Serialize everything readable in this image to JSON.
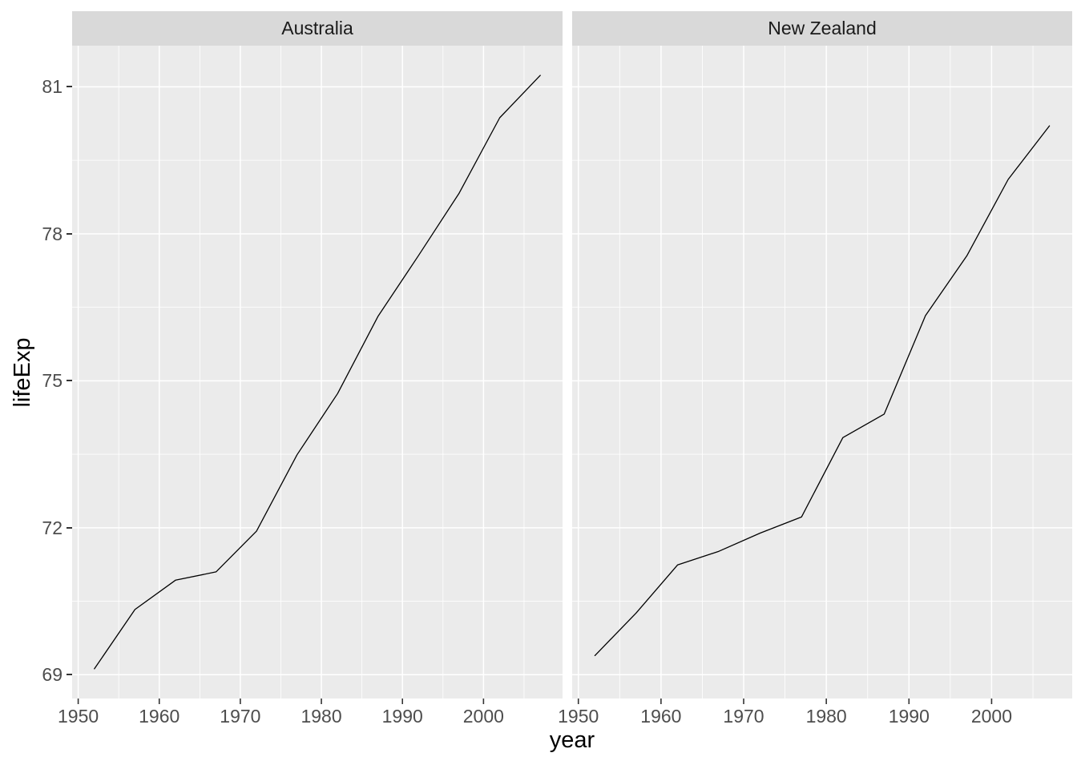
{
  "figure": {
    "background": "#FFFFFF",
    "panel_bg": "#EBEBEB",
    "strip_bg": "#D9D9D9",
    "grid_color": "#FFFFFF",
    "line_color": "#000000",
    "axis_text_color": "#4D4D4D",
    "tick_mark_color": "#333333",
    "strip_text_color": "#1A1A1A",
    "title_color": "#000000"
  },
  "chart_data": {
    "type": "line",
    "title": "",
    "xlabel": "year",
    "ylabel": "lifeExp",
    "grid": true,
    "legend": "none",
    "xlim": [
      1949.25,
      2009.75
    ],
    "ylim": [
      68.514,
      81.841
    ],
    "x_ticks": [
      1950,
      1960,
      1970,
      1980,
      1990,
      2000
    ],
    "x_minor": [
      1955,
      1965,
      1975,
      1985,
      1995,
      2005
    ],
    "y_ticks": [
      69,
      72,
      75,
      78,
      81
    ],
    "y_minor": [
      70.5,
      73.5,
      76.5,
      79.5
    ],
    "x": [
      1952,
      1957,
      1962,
      1967,
      1972,
      1977,
      1982,
      1987,
      1992,
      1997,
      2002,
      2007
    ],
    "facets": [
      {
        "label": "Australia",
        "values": [
          69.12,
          70.33,
          70.93,
          71.1,
          71.93,
          73.49,
          74.74,
          76.32,
          77.56,
          78.83,
          80.37,
          81.235
        ]
      },
      {
        "label": "New Zealand",
        "values": [
          69.39,
          70.26,
          71.24,
          71.52,
          71.89,
          72.22,
          73.84,
          74.32,
          76.33,
          77.55,
          79.11,
          80.204
        ]
      }
    ]
  }
}
